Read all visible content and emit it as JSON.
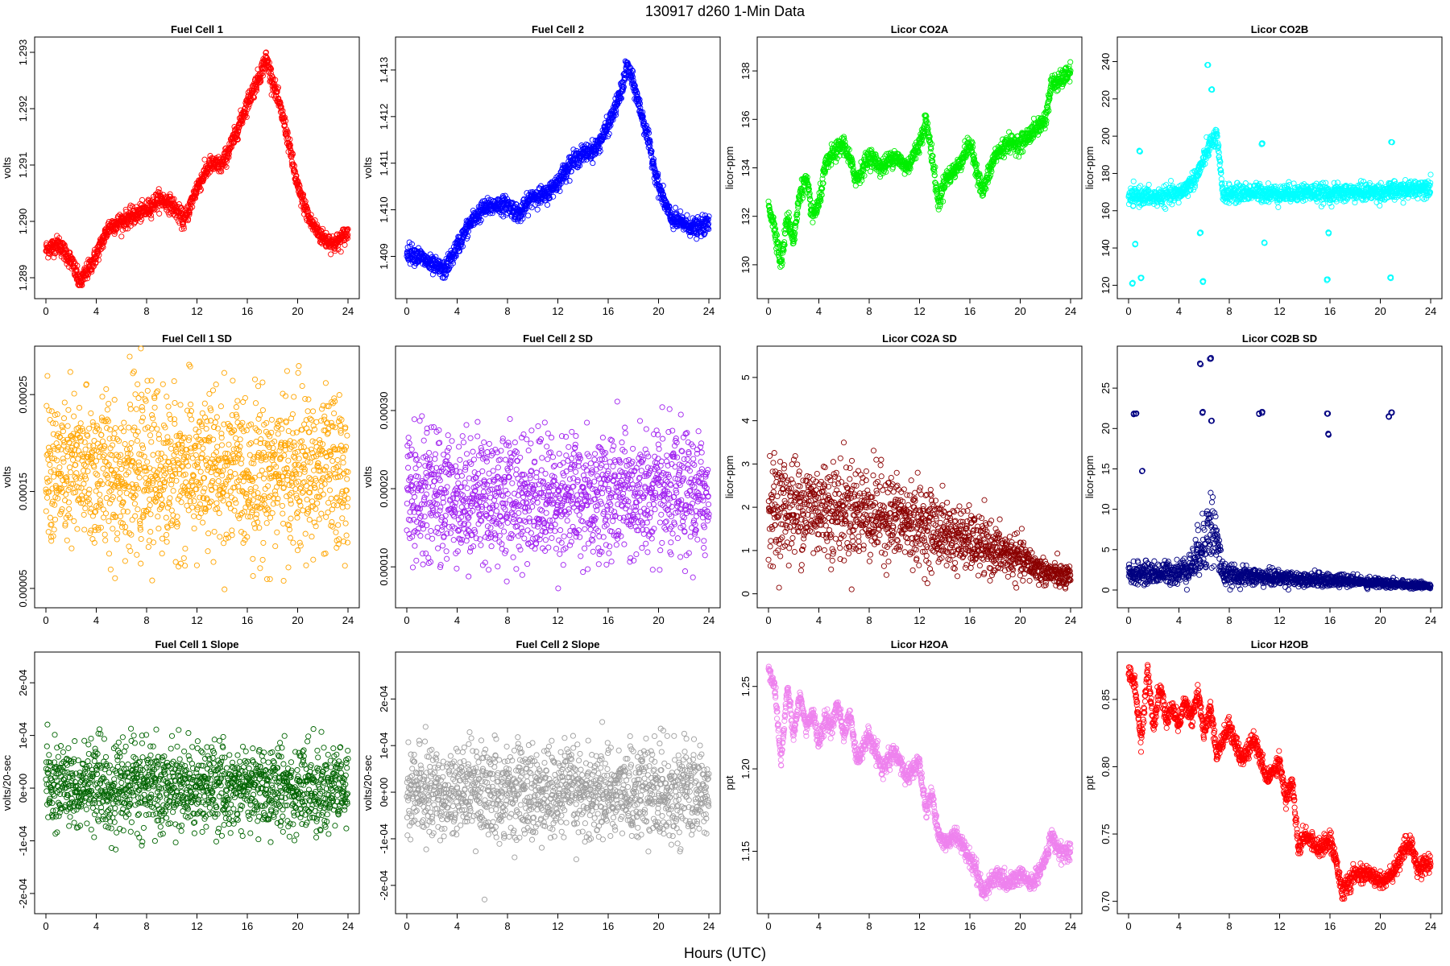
{
  "figure": {
    "title": "130917   d260   1-Min Data",
    "xlabel": "Hours (UTC)"
  },
  "chart_data": [
    {
      "type": "scatter",
      "title": "Fuel Cell 1",
      "ylabel": "volts",
      "xlim": [
        0,
        24
      ],
      "ylim": [
        1.2888,
        1.2931
      ],
      "yticks": [
        "1.289",
        "1.290",
        "1.291",
        "1.292",
        "1.293"
      ],
      "ytick_values": [
        1.289,
        1.29,
        1.291,
        1.292,
        1.293
      ],
      "xticks": [
        0,
        4,
        8,
        12,
        16,
        20,
        24
      ],
      "color": "#ff0000",
      "x": [
        0,
        1,
        2,
        2.7,
        3.5,
        4,
        5,
        6,
        7,
        8,
        9,
        10,
        11,
        12,
        13,
        14,
        15,
        16,
        17,
        17.5,
        18,
        19,
        20,
        21,
        22,
        23,
        24
      ],
      "y": [
        1.2895,
        1.2896,
        1.2893,
        1.2889,
        1.2892,
        1.2894,
        1.2899,
        1.29,
        1.2901,
        1.2902,
        1.2904,
        1.2903,
        1.29,
        1.2906,
        1.291,
        1.291,
        1.2915,
        1.2921,
        1.2926,
        1.2929,
        1.2925,
        1.2917,
        1.2906,
        1.29,
        1.2897,
        1.2896,
        1.2898
      ]
    },
    {
      "type": "scatter",
      "title": "Fuel Cell 2",
      "ylabel": "volts",
      "xlim": [
        0,
        24
      ],
      "ylim": [
        1.4083,
        1.4135
      ],
      "yticks": [
        "1.409",
        "1.410",
        "1.411",
        "1.412",
        "1.413"
      ],
      "ytick_values": [
        1.409,
        1.41,
        1.411,
        1.412,
        1.413
      ],
      "xticks": [
        0,
        4,
        8,
        12,
        16,
        20,
        24
      ],
      "color": "#0000ff",
      "x": [
        0,
        1,
        2,
        3,
        4,
        5,
        6,
        7,
        8,
        9,
        10,
        11,
        12,
        13,
        14,
        15,
        16,
        17,
        17.5,
        18,
        19,
        20,
        21,
        22,
        23,
        24
      ],
      "y": [
        1.4091,
        1.409,
        1.4088,
        1.4087,
        1.4092,
        1.4097,
        1.41,
        1.4101,
        1.4101,
        1.4099,
        1.4103,
        1.4103,
        1.4106,
        1.411,
        1.4112,
        1.4113,
        1.4118,
        1.4125,
        1.4131,
        1.4127,
        1.4117,
        1.4105,
        1.4098,
        1.4097,
        1.4096,
        1.4097
      ]
    },
    {
      "type": "scatter",
      "title": "Licor CO2A",
      "ylabel": "licor-ppm",
      "xlim": [
        0,
        24
      ],
      "ylim": [
        129,
        139
      ],
      "yticks": [
        "130",
        "132",
        "134",
        "136",
        "138"
      ],
      "ytick_values": [
        130,
        132,
        134,
        136,
        138
      ],
      "xticks": [
        0,
        4,
        8,
        12,
        16,
        20,
        24
      ],
      "color": "#00ee00",
      "x": [
        0,
        0.5,
        1,
        1.5,
        2,
        2.5,
        3,
        3.5,
        4,
        4.5,
        5,
        6,
        7,
        8,
        9,
        10,
        11,
        12,
        12.5,
        13,
        13.5,
        14,
        15,
        16,
        17,
        18,
        19,
        20,
        21,
        22,
        22.5,
        23,
        24
      ],
      "y": [
        132.5,
        131.5,
        130,
        132,
        131,
        133,
        133.5,
        132,
        132.5,
        134,
        134.5,
        135,
        133.5,
        134.5,
        134,
        134.5,
        134,
        135,
        136,
        134.5,
        132.5,
        133.5,
        134,
        135,
        133,
        134.5,
        135,
        135,
        135.5,
        136,
        137.5,
        137.5,
        138
      ]
    },
    {
      "type": "scatter",
      "title": "Licor CO2B",
      "ylabel": "licor-ppm",
      "xlim": [
        0,
        24
      ],
      "ylim": [
        118,
        248
      ],
      "yticks": [
        "120",
        "140",
        "160",
        "180",
        "200",
        "220",
        "240"
      ],
      "ytick_values": [
        120,
        140,
        160,
        180,
        200,
        220,
        240
      ],
      "xticks": [
        0,
        4,
        8,
        12,
        16,
        20,
        24
      ],
      "color": "#00ffff",
      "x": [
        0,
        1,
        2,
        3,
        4,
        4.5,
        5,
        5.5,
        6,
        6.5,
        7,
        7.5,
        8,
        10,
        12,
        14,
        16,
        18,
        20,
        22,
        23,
        24
      ],
      "y": [
        167,
        168,
        167,
        168,
        169,
        172,
        175,
        180,
        188,
        196,
        200,
        169,
        169,
        170,
        169,
        170,
        169,
        170,
        170,
        171,
        172,
        173
      ],
      "outliers_x": [
        0.3,
        0.5,
        0.9,
        1.0,
        5.7,
        5.9,
        6.3,
        6.6,
        10.6,
        10.8,
        15.8,
        15.9,
        20.8,
        20.9
      ],
      "outliers_y": [
        121,
        142,
        192,
        124,
        148,
        122,
        238,
        225,
        196,
        143,
        123,
        148,
        124,
        197
      ]
    },
    {
      "type": "scatter",
      "title": "Fuel Cell 1 SD",
      "ylabel": "volts",
      "xlim": [
        0,
        24
      ],
      "ylim": [
        4e-05,
        0.00029
      ],
      "yticks": [
        "0.00005",
        "0.00015",
        "0.00025"
      ],
      "ytick_values": [
        5e-05,
        0.00015,
        0.00025
      ],
      "xticks": [
        0,
        4,
        8,
        12,
        16,
        20,
        24
      ],
      "color": "#ffa500",
      "noise": true,
      "center": 0.00017,
      "spread": 5e-05
    },
    {
      "type": "scatter",
      "title": "Fuel Cell 2 SD",
      "ylabel": "volts",
      "xlim": [
        0,
        24
      ],
      "ylim": [
        6e-05,
        0.00037
      ],
      "yticks": [
        "0.00010",
        "0.00020",
        "0.00030"
      ],
      "ytick_values": [
        0.0001,
        0.0002,
        0.0003
      ],
      "xticks": [
        0,
        4,
        8,
        12,
        16,
        20,
        24
      ],
      "color": "#a020f0",
      "noise": true,
      "center": 0.00019,
      "spread": 5e-05
    },
    {
      "type": "scatter",
      "title": "Licor CO2A SD",
      "ylabel": "licor-ppm",
      "xlim": [
        0,
        24
      ],
      "ylim": [
        -0.1,
        5.5
      ],
      "yticks": [
        "0",
        "1",
        "2",
        "3",
        "4",
        "5"
      ],
      "ytick_values": [
        0,
        1,
        2,
        3,
        4,
        5
      ],
      "xticks": [
        0,
        4,
        8,
        12,
        16,
        20,
        24
      ],
      "color": "#8b0000",
      "noise": true,
      "trend_x": [
        0,
        4,
        8,
        12,
        16,
        20,
        22,
        24
      ],
      "trend_y": [
        2.0,
        2.0,
        1.9,
        1.6,
        1.2,
        0.8,
        0.5,
        0.35
      ],
      "spread": 0.7
    },
    {
      "type": "scatter",
      "title": "Licor CO2B SD",
      "ylabel": "licor-ppm",
      "xlim": [
        0,
        24
      ],
      "ylim": [
        -1,
        29
      ],
      "yticks": [
        "0",
        "5",
        "10",
        "15",
        "20",
        "25"
      ],
      "ytick_values": [
        0,
        5,
        10,
        15,
        20,
        25
      ],
      "xticks": [
        0,
        4,
        8,
        12,
        16,
        20,
        24
      ],
      "color": "#000080",
      "noise": true,
      "trend_x": [
        0,
        4,
        5,
        6,
        6.5,
        7,
        7.5,
        8,
        12,
        16,
        20,
        24
      ],
      "trend_y": [
        2,
        2.2,
        3,
        6,
        8,
        6,
        2,
        1.8,
        1.5,
        1.2,
        0.9,
        0.5
      ],
      "spread": 0.8,
      "outliers_x": [
        0.4,
        0.6,
        1.1,
        5.7,
        5.9,
        6.5,
        6.6,
        10.4,
        10.6,
        15.8,
        15.9,
        20.7,
        20.9
      ],
      "outliers_y": [
        21.8,
        21.8,
        14.7,
        28,
        22,
        28.7,
        21,
        21.8,
        22,
        21.8,
        19.3,
        21.5,
        22
      ]
    },
    {
      "type": "scatter",
      "title": "Fuel Cell 1 Slope",
      "ylabel": "volts/20-sec",
      "xlim": [
        0,
        24
      ],
      "ylim": [
        -0.00022,
        0.00024
      ],
      "yticks": [
        "-2e-04",
        "-1e-04",
        "0e+00",
        "1e-04",
        "2e-04"
      ],
      "ytick_values": [
        -0.0002,
        -0.0001,
        0,
        0.0001,
        0.0002
      ],
      "xticks": [
        0,
        4,
        8,
        12,
        16,
        20,
        24
      ],
      "color": "#006400",
      "noise": true,
      "center": 0,
      "spread": 5e-05
    },
    {
      "type": "scatter",
      "title": "Fuel Cell 2 Slope",
      "ylabel": "volts/20-sec",
      "xlim": [
        0,
        24
      ],
      "ylim": [
        -0.00024,
        0.00028
      ],
      "yticks": [
        "-2e-04",
        "-1e-04",
        "0e+00",
        "1e-04",
        "2e-04"
      ],
      "ytick_values": [
        -0.0002,
        -0.0001,
        0,
        0.0001,
        0.0002
      ],
      "xticks": [
        0,
        4,
        8,
        12,
        16,
        20,
        24
      ],
      "color": "#9e9e9e",
      "noise": true,
      "center": 0,
      "spread": 6e-05
    },
    {
      "type": "scatter",
      "title": "Licor H2OA",
      "ylabel": "ppt",
      "xlim": [
        0,
        24
      ],
      "ylim": [
        1.118,
        1.265
      ],
      "yticks": [
        "1.15",
        "1.20",
        "1.25"
      ],
      "ytick_values": [
        1.15,
        1.2,
        1.25
      ],
      "xticks": [
        0,
        4,
        8,
        12,
        16,
        20,
        24
      ],
      "color": "#ee82ee",
      "x": [
        0,
        0.5,
        1,
        1.5,
        2,
        2.5,
        3,
        3.5,
        4,
        4.5,
        5,
        5.5,
        6,
        6.5,
        7,
        8,
        9,
        10,
        11,
        12,
        12.5,
        13,
        13.5,
        14,
        15,
        16,
        16.5,
        17,
        18,
        19,
        20,
        21,
        22,
        22.5,
        23,
        24
      ],
      "y": [
        1.26,
        1.25,
        1.205,
        1.25,
        1.22,
        1.245,
        1.225,
        1.235,
        1.215,
        1.23,
        1.225,
        1.24,
        1.22,
        1.235,
        1.205,
        1.22,
        1.2,
        1.21,
        1.195,
        1.205,
        1.175,
        1.185,
        1.16,
        1.155,
        1.16,
        1.145,
        1.14,
        1.125,
        1.135,
        1.13,
        1.135,
        1.13,
        1.145,
        1.16,
        1.15,
        1.15
      ]
    },
    {
      "type": "scatter",
      "title": "Licor H2OB",
      "ylabel": "ppt",
      "xlim": [
        0,
        24
      ],
      "ylim": [
        0.698,
        0.878
      ],
      "yticks": [
        "0.70",
        "0.75",
        "0.80",
        "0.85"
      ],
      "ytick_values": [
        0.7,
        0.75,
        0.8,
        0.85
      ],
      "xticks": [
        0,
        4,
        8,
        12,
        16,
        20,
        24
      ],
      "color": "#ff0000",
      "x": [
        0,
        0.5,
        1,
        1.5,
        2,
        2.5,
        3,
        3.5,
        4,
        4.5,
        5,
        5.5,
        6,
        6.5,
        7,
        8,
        9,
        10,
        11,
        12,
        12.5,
        13,
        13.5,
        14,
        15,
        16,
        16.5,
        17,
        18,
        19,
        20,
        21,
        22,
        22.5,
        23,
        24
      ],
      "y": [
        0.872,
        0.86,
        0.818,
        0.872,
        0.83,
        0.86,
        0.835,
        0.845,
        0.83,
        0.85,
        0.835,
        0.855,
        0.825,
        0.845,
        0.81,
        0.83,
        0.805,
        0.82,
        0.79,
        0.805,
        0.775,
        0.79,
        0.74,
        0.75,
        0.74,
        0.745,
        0.73,
        0.707,
        0.72,
        0.72,
        0.715,
        0.72,
        0.74,
        0.742,
        0.725,
        0.728
      ]
    }
  ]
}
